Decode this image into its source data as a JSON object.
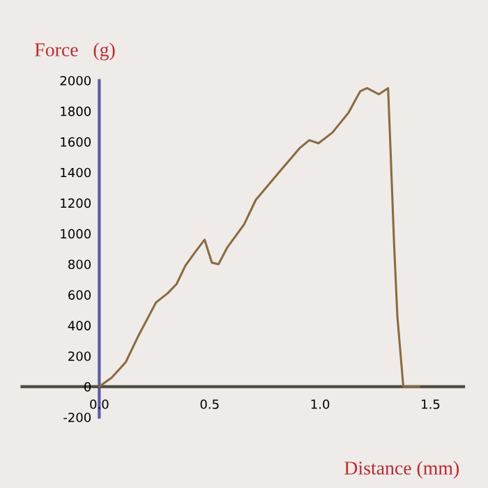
{
  "chart_data": {
    "type": "line",
    "xlabel": "Distance (mm)",
    "ylabel": "Force   (g)",
    "x": [
      0,
      0.057,
      0.12,
      0.18,
      0.257,
      0.31,
      0.35,
      0.39,
      0.435,
      0.477,
      0.51,
      0.54,
      0.58,
      0.656,
      0.709,
      0.814,
      0.909,
      0.951,
      0.993,
      1.056,
      1.129,
      1.182,
      1.213,
      1.266,
      1.308,
      1.319,
      1.335,
      1.35,
      1.377,
      1.45
    ],
    "series": [
      {
        "color": "#8b6a3e",
        "values": [
          0,
          60,
          160,
          340,
          550,
          610,
          670,
          790,
          880,
          960,
          810,
          800,
          910,
          1060,
          1220,
          1400,
          1560,
          1610,
          1590,
          1660,
          1790,
          1930,
          1950,
          1910,
          1950,
          1550,
          940,
          460,
          0,
          0
        ]
      }
    ],
    "xlim": [
      -0.35,
      1.65
    ],
    "ylim": [
      -200,
      2000
    ],
    "xticks": [
      {
        "value": 0,
        "label": "0.0"
      },
      0.5,
      {
        "value": 1,
        "label": "1.0"
      },
      1.5
    ],
    "yticks": [
      -200,
      0,
      200,
      400,
      600,
      800,
      1000,
      1200,
      1400,
      1600,
      1800,
      2000
    ],
    "grid": false,
    "legend": false,
    "marker": "none",
    "line_style": "solid"
  }
}
